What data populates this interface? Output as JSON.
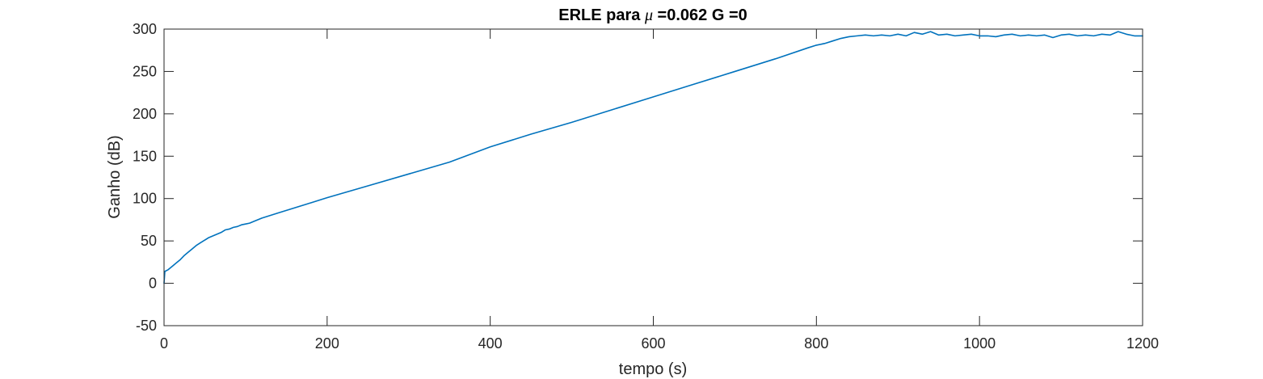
{
  "chart_data": {
    "type": "line",
    "title": {
      "prefix": "ERLE para ",
      "symbol": "μ",
      "suffix": " =0.062 G =0"
    },
    "xlabel": "tempo (s)",
    "ylabel": "Ganho (dB)",
    "xlim": [
      0,
      1200
    ],
    "ylim": [
      -50,
      300
    ],
    "xticks": [
      0,
      200,
      400,
      600,
      800,
      1000,
      1200
    ],
    "yticks": [
      -50,
      0,
      50,
      100,
      150,
      200,
      250,
      300
    ],
    "grid": false,
    "series": [
      {
        "color": "#0072BD",
        "x": [
          0,
          1,
          5,
          10,
          15,
          20,
          25,
          30,
          35,
          40,
          45,
          50,
          55,
          60,
          65,
          70,
          75,
          80,
          85,
          90,
          95,
          100,
          105,
          110,
          120,
          140,
          160,
          180,
          200,
          250,
          300,
          350,
          400,
          450,
          500,
          550,
          600,
          650,
          700,
          750,
          790,
          800,
          810,
          820,
          830,
          840,
          850,
          860,
          870,
          880,
          890,
          900,
          910,
          920,
          930,
          940,
          950,
          960,
          970,
          980,
          990,
          1000,
          1010,
          1020,
          1030,
          1040,
          1050,
          1060,
          1070,
          1080,
          1090,
          1100,
          1110,
          1120,
          1130,
          1140,
          1150,
          1160,
          1170,
          1180,
          1190,
          1200
        ],
        "y": [
          0,
          14,
          16,
          20,
          24,
          28,
          33,
          37,
          41,
          45,
          48,
          51,
          54,
          56,
          58,
          60,
          63,
          64,
          66,
          67,
          69,
          70,
          71,
          73,
          77,
          83,
          89,
          95,
          101,
          115,
          129,
          143,
          161,
          176,
          190,
          205,
          220,
          235,
          250,
          265,
          278,
          281,
          283,
          286,
          289,
          291,
          292,
          293,
          292,
          293,
          292,
          294,
          292,
          296,
          294,
          297,
          293,
          294,
          292,
          293,
          294,
          292,
          292,
          291,
          293,
          294,
          292,
          293,
          292,
          293,
          290,
          293,
          294,
          292,
          293,
          292,
          294,
          293,
          297,
          294,
          292,
          292
        ]
      }
    ]
  }
}
